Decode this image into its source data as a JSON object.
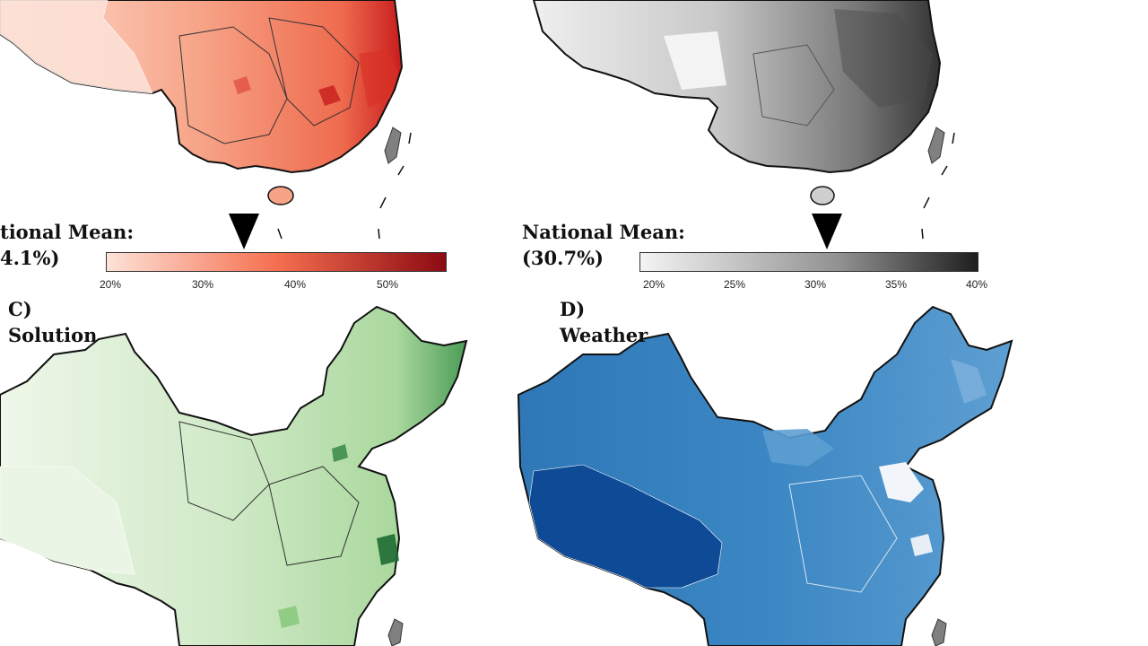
{
  "panels": {
    "a": {
      "mean_label": "tional Mean:",
      "mean_value": "4.1%)",
      "ticks": [
        "20%",
        "30%",
        "40%",
        "50%"
      ],
      "colors": {
        "low": "#fde3d8",
        "mid": "#f56f4f",
        "high": "#8c0a12"
      }
    },
    "b": {
      "mean_label": "National Mean:",
      "mean_value": "(30.7%)",
      "ticks": [
        "20%",
        "25%",
        "30%",
        "35%",
        "40%"
      ],
      "colors": {
        "low": "#f4f4f4",
        "mid": "#9a9a9a",
        "high": "#1e1e1e"
      }
    },
    "c": {
      "letter": "C)",
      "title": "Solution",
      "colors": {
        "low": "#eef7ea",
        "mid": "#bfe3b4",
        "high": "#1d6b32"
      }
    },
    "d": {
      "letter": "D)",
      "title": "Weather",
      "colors": {
        "low": "#cfe0f1",
        "mid": "#4a8fc7",
        "high": "#0e4a95"
      }
    }
  }
}
